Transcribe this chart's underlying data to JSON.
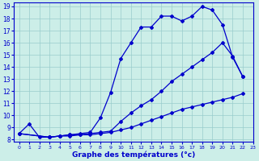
{
  "line1_x": [
    0,
    1,
    2,
    3,
    4,
    5,
    6,
    7,
    8,
    9,
    10,
    11,
    12,
    13,
    14,
    15,
    16,
    17,
    18,
    19,
    20,
    21,
    22
  ],
  "line1_y": [
    8.5,
    9.3,
    8.2,
    8.2,
    8.3,
    8.4,
    8.5,
    8.6,
    9.8,
    11.9,
    14.7,
    16.0,
    17.3,
    17.3,
    18.2,
    18.2,
    17.8,
    18.2,
    19.0,
    18.7,
    17.5,
    14.8,
    13.2
  ],
  "line2_x": [
    0,
    3,
    4,
    5,
    6,
    7,
    8,
    9,
    10,
    11,
    12,
    13,
    14,
    15,
    16,
    17,
    18,
    19,
    20,
    21,
    22
  ],
  "line2_y": [
    8.5,
    8.2,
    8.3,
    8.4,
    8.4,
    8.5,
    8.6,
    8.7,
    9.5,
    10.2,
    10.8,
    11.3,
    12.0,
    12.8,
    13.4,
    14.0,
    14.6,
    15.2,
    16.0,
    14.9,
    13.2
  ],
  "line3_x": [
    0,
    3,
    4,
    5,
    6,
    7,
    8,
    9,
    10,
    11,
    12,
    13,
    14,
    15,
    16,
    17,
    18,
    19,
    20,
    21,
    22
  ],
  "line3_y": [
    8.5,
    8.2,
    8.3,
    8.3,
    8.4,
    8.4,
    8.5,
    8.6,
    8.8,
    9.0,
    9.3,
    9.6,
    9.9,
    10.2,
    10.5,
    10.7,
    10.9,
    11.1,
    11.3,
    11.5,
    11.8
  ],
  "color": "#0000cc",
  "background": "#cceee8",
  "grid_color": "#99cccc",
  "xlabel": "Graphe des températures (°c)",
  "xlim": [
    -0.5,
    23
  ],
  "ylim": [
    7.8,
    19.3
  ],
  "yticks": [
    8,
    9,
    10,
    11,
    12,
    13,
    14,
    15,
    16,
    17,
    18,
    19
  ],
  "xticks": [
    0,
    1,
    2,
    3,
    4,
    5,
    6,
    7,
    8,
    9,
    10,
    11,
    12,
    13,
    14,
    15,
    16,
    17,
    18,
    19,
    20,
    21,
    22,
    23
  ]
}
